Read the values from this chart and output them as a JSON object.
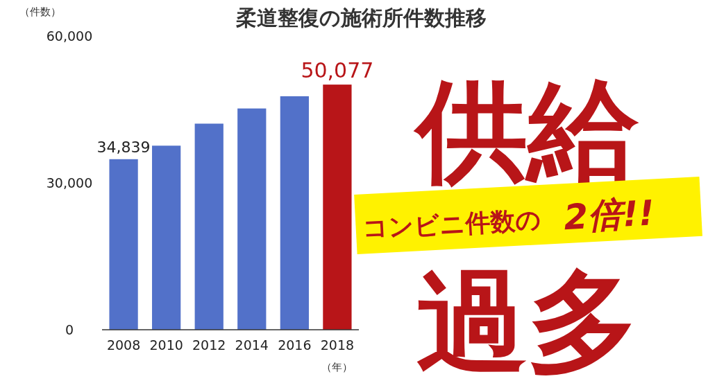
{
  "chart_data": {
    "type": "bar",
    "title": "柔道整復の施術所件数推移",
    "ylabel": "（件数）",
    "xlabel": "（年）",
    "categories": [
      "2008",
      "2010",
      "2012",
      "2014",
      "2016",
      "2018"
    ],
    "values": [
      34839,
      37600,
      42100,
      45200,
      47700,
      50077
    ],
    "colors": [
      "#5271c9",
      "#5271c9",
      "#5271c9",
      "#5271c9",
      "#5271c9",
      "#b81518"
    ],
    "value_labels": [
      "34,839",
      null,
      null,
      null,
      null,
      "50,077"
    ],
    "ylim": [
      0,
      60000
    ],
    "yticks": [
      0,
      {
        "value": 30000,
        "label": "30,000"
      },
      {
        "value": 60000,
        "label": "60,000"
      }
    ],
    "grid": false,
    "annotations": [
      "供給",
      "コンビニ件数の",
      "2倍!!",
      "過多"
    ]
  }
}
